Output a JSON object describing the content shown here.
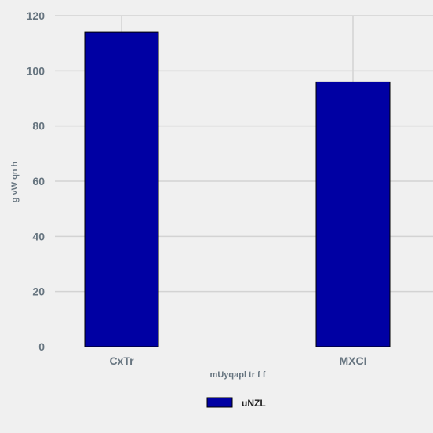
{
  "chart_data": {
    "type": "bar",
    "title": "",
    "xlabel": "mUyqapl tr f f",
    "ylabel": "g vW qn h",
    "categories": [
      "CxTr",
      "MXCI"
    ],
    "series": [
      {
        "name": "uNZL",
        "values": [
          114,
          96
        ]
      }
    ],
    "ylim": [
      0,
      120
    ],
    "yticks": [
      0,
      20,
      40,
      60,
      80,
      100,
      120
    ],
    "grid": true,
    "legend": "bottom",
    "colors": {
      "background": "#f0f0f0",
      "bar": "#0000a3",
      "bar_edge": "#000000",
      "grid": "#d3d3d3",
      "tick_text": "#677580"
    }
  }
}
